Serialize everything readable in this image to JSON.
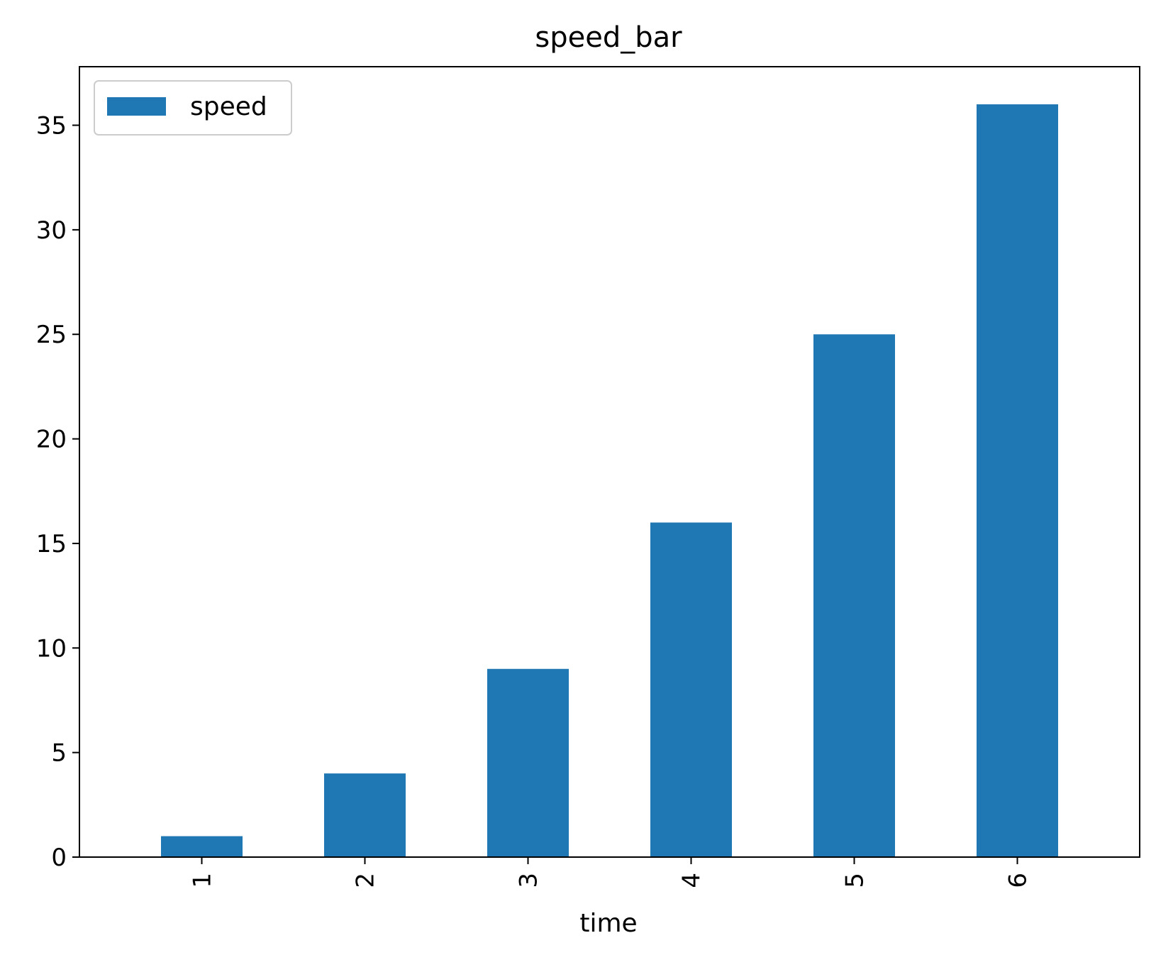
{
  "chart_data": {
    "type": "bar",
    "title": "speed_bar",
    "xlabel": "time",
    "ylabel": "",
    "categories": [
      "1",
      "2",
      "3",
      "4",
      "5",
      "6"
    ],
    "series": [
      {
        "name": "speed",
        "color": "#1f77b4",
        "values": [
          1,
          4,
          9,
          16,
          25,
          36
        ]
      }
    ],
    "ylim": [
      0,
      37.8
    ],
    "yticks": [
      0,
      5,
      10,
      15,
      20,
      25,
      30,
      35
    ],
    "x_tick_rotation": "vertical",
    "grid": false,
    "legend": {
      "placement": "top-left"
    }
  }
}
